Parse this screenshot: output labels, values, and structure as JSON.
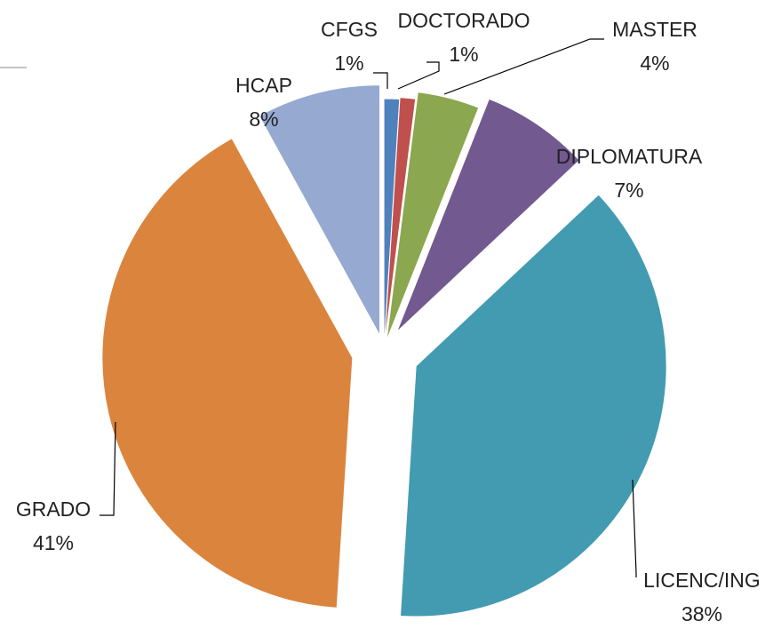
{
  "chart_data": {
    "type": "pie",
    "categories": [
      "CFGS",
      "DOCTORADO",
      "MASTER",
      "DIPLOMATURA",
      "LICENC/ING",
      "GRADO",
      "HCAP"
    ],
    "values": [
      1,
      1,
      4,
      7,
      38,
      41,
      8
    ],
    "value_labels": [
      "1%",
      "1%",
      "4%",
      "7%",
      "38%",
      "41%",
      "8%"
    ],
    "colors": [
      "#4f81bd",
      "#c0504d",
      "#8ba74f",
      "#72598f",
      "#429bb0",
      "#db843e",
      "#95a9d1"
    ]
  }
}
